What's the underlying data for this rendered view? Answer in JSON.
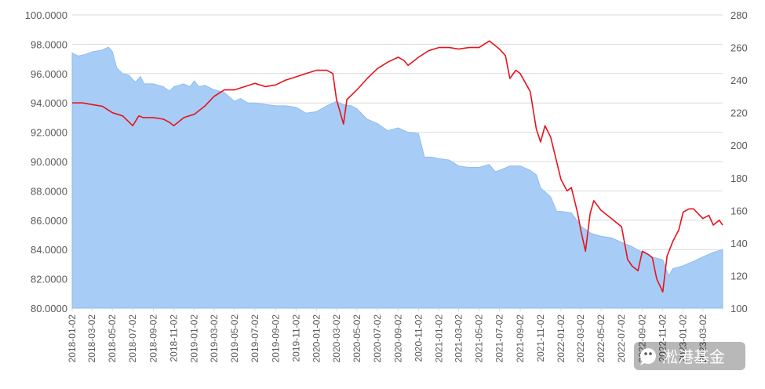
{
  "chart_data": {
    "type": "area+line",
    "title": "",
    "grid": true,
    "legend": "none",
    "colors": {
      "area": "#a7cdf6",
      "area_edge": "#8fbcef",
      "line": "#e8121c",
      "grid": "#d9d9d9",
      "text": "#595959"
    },
    "left_axis": {
      "ylim": [
        80,
        100
      ],
      "ticks": [
        "100.0000",
        "98.0000",
        "96.0000",
        "94.0000",
        "92.0000",
        "90.0000",
        "88.0000",
        "86.0000",
        "84.0000",
        "82.0000",
        "80.0000"
      ],
      "tick_values": [
        100,
        98,
        96,
        94,
        92,
        90,
        88,
        86,
        84,
        82,
        80
      ]
    },
    "right_axis": {
      "ylim": [
        100,
        280
      ],
      "ticks": [
        "280",
        "260",
        "240",
        "220",
        "200",
        "180",
        "160",
        "140",
        "120",
        "100"
      ],
      "tick_values": [
        280,
        260,
        240,
        220,
        200,
        180,
        160,
        140,
        120,
        100
      ]
    },
    "x_axis": {
      "type": "date",
      "range": [
        "2018-01-02",
        "2023-04-30"
      ],
      "tick_labels": [
        "2018-01-02",
        "2018-03-02",
        "2018-05-02",
        "2018-07-02",
        "2018-09-02",
        "2018-11-02",
        "2019-01-02",
        "2019-03-02",
        "2019-05-02",
        "2019-07-02",
        "2019-09-02",
        "2019-11-02",
        "2020-01-02",
        "2020-03-02",
        "2020-05-02",
        "2020-07-02",
        "2020-09-02",
        "2020-11-02",
        "2021-01-02",
        "2021-03-02",
        "2021-05-02",
        "2021-07-02",
        "2021-09-02",
        "2021-11-02",
        "2022-01-02",
        "2022-03-02",
        "2022-05-02",
        "2022-07-02",
        "2022-09-02",
        "2022-11-02",
        "2023-01-02",
        "2023-03-02"
      ]
    },
    "series": [
      {
        "axis": "left",
        "style": "area",
        "points": [
          [
            "2018-01-02",
            97.4
          ],
          [
            "2018-01-20",
            97.2
          ],
          [
            "2018-02-10",
            97.3
          ],
          [
            "2018-03-05",
            97.5
          ],
          [
            "2018-04-01",
            97.6
          ],
          [
            "2018-04-20",
            97.8
          ],
          [
            "2018-05-02",
            97.5
          ],
          [
            "2018-05-15",
            96.4
          ],
          [
            "2018-06-01",
            96.0
          ],
          [
            "2018-06-20",
            95.9
          ],
          [
            "2018-07-10",
            95.4
          ],
          [
            "2018-07-25",
            95.8
          ],
          [
            "2018-08-05",
            95.3
          ],
          [
            "2018-09-01",
            95.3
          ],
          [
            "2018-10-01",
            95.1
          ],
          [
            "2018-10-20",
            94.8
          ],
          [
            "2018-11-02",
            95.1
          ],
          [
            "2018-12-01",
            95.3
          ],
          [
            "2018-12-20",
            95.1
          ],
          [
            "2019-01-02",
            95.5
          ],
          [
            "2019-01-15",
            95.1
          ],
          [
            "2019-02-02",
            95.2
          ],
          [
            "2019-03-02",
            94.9
          ],
          [
            "2019-04-02",
            94.7
          ],
          [
            "2019-05-02",
            94.1
          ],
          [
            "2019-05-20",
            94.3
          ],
          [
            "2019-06-10",
            94.0
          ],
          [
            "2019-07-02",
            94.0
          ],
          [
            "2019-08-02",
            93.9
          ],
          [
            "2019-09-02",
            93.8
          ],
          [
            "2019-10-02",
            93.8
          ],
          [
            "2019-11-02",
            93.7
          ],
          [
            "2019-12-02",
            93.3
          ],
          [
            "2020-01-02",
            93.4
          ],
          [
            "2020-02-02",
            93.8
          ],
          [
            "2020-03-02",
            94.1
          ],
          [
            "2020-03-20",
            93.9
          ],
          [
            "2020-04-15",
            93.8
          ],
          [
            "2020-05-02",
            93.6
          ],
          [
            "2020-06-01",
            92.9
          ],
          [
            "2020-07-02",
            92.6
          ],
          [
            "2020-08-02",
            92.1
          ],
          [
            "2020-09-02",
            92.3
          ],
          [
            "2020-10-01",
            92.0
          ],
          [
            "2020-11-02",
            91.9
          ],
          [
            "2020-11-20",
            90.3
          ],
          [
            "2020-12-10",
            90.3
          ],
          [
            "2021-01-02",
            90.2
          ],
          [
            "2021-02-02",
            90.1
          ],
          [
            "2021-03-02",
            89.7
          ],
          [
            "2021-04-02",
            89.6
          ],
          [
            "2021-05-02",
            89.6
          ],
          [
            "2021-06-01",
            89.8
          ],
          [
            "2021-06-20",
            89.3
          ],
          [
            "2021-07-02",
            89.4
          ],
          [
            "2021-08-02",
            89.7
          ],
          [
            "2021-09-02",
            89.7
          ],
          [
            "2021-10-02",
            89.4
          ],
          [
            "2021-10-20",
            89.1
          ],
          [
            "2021-11-02",
            88.2
          ],
          [
            "2021-12-02",
            87.6
          ],
          [
            "2021-12-20",
            86.6
          ],
          [
            "2022-01-02",
            86.6
          ],
          [
            "2022-02-02",
            86.5
          ],
          [
            "2022-03-02",
            85.6
          ],
          [
            "2022-04-02",
            85.1
          ],
          [
            "2022-05-02",
            84.9
          ],
          [
            "2022-06-02",
            84.8
          ],
          [
            "2022-07-02",
            84.5
          ],
          [
            "2022-08-02",
            84.2
          ],
          [
            "2022-09-02",
            83.8
          ],
          [
            "2022-10-02",
            83.5
          ],
          [
            "2022-11-02",
            83.3
          ],
          [
            "2022-11-20",
            82.2
          ],
          [
            "2022-12-02",
            82.7
          ],
          [
            "2023-01-02",
            82.9
          ],
          [
            "2023-02-02",
            83.2
          ],
          [
            "2023-03-02",
            83.5
          ],
          [
            "2023-04-02",
            83.8
          ],
          [
            "2023-04-30",
            84.0
          ]
        ]
      },
      {
        "axis": "right",
        "style": "line",
        "points": [
          [
            "2018-01-02",
            226
          ],
          [
            "2018-02-02",
            226
          ],
          [
            "2018-03-02",
            225
          ],
          [
            "2018-04-02",
            224
          ],
          [
            "2018-05-02",
            220
          ],
          [
            "2018-06-02",
            218
          ],
          [
            "2018-07-02",
            212
          ],
          [
            "2018-07-20",
            218
          ],
          [
            "2018-08-02",
            217
          ],
          [
            "2018-09-02",
            217
          ],
          [
            "2018-10-02",
            216
          ],
          [
            "2018-10-20",
            214
          ],
          [
            "2018-11-02",
            212
          ],
          [
            "2018-12-02",
            217
          ],
          [
            "2019-01-02",
            219
          ],
          [
            "2019-02-02",
            224
          ],
          [
            "2019-03-02",
            230
          ],
          [
            "2019-04-02",
            234
          ],
          [
            "2019-05-02",
            234
          ],
          [
            "2019-06-02",
            236
          ],
          [
            "2019-07-02",
            238
          ],
          [
            "2019-08-02",
            236
          ],
          [
            "2019-09-02",
            237
          ],
          [
            "2019-10-02",
            240
          ],
          [
            "2019-11-02",
            242
          ],
          [
            "2019-12-02",
            244
          ],
          [
            "2020-01-02",
            246
          ],
          [
            "2020-02-02",
            246
          ],
          [
            "2020-02-20",
            244
          ],
          [
            "2020-03-02",
            228
          ],
          [
            "2020-03-23",
            213
          ],
          [
            "2020-04-02",
            228
          ],
          [
            "2020-05-02",
            234
          ],
          [
            "2020-06-02",
            241
          ],
          [
            "2020-07-02",
            247
          ],
          [
            "2020-08-02",
            251
          ],
          [
            "2020-09-02",
            254
          ],
          [
            "2020-09-20",
            252
          ],
          [
            "2020-10-02",
            249
          ],
          [
            "2020-11-02",
            254
          ],
          [
            "2020-12-02",
            258
          ],
          [
            "2021-01-02",
            260
          ],
          [
            "2021-02-02",
            260
          ],
          [
            "2021-03-02",
            259
          ],
          [
            "2021-04-02",
            260
          ],
          [
            "2021-05-02",
            260
          ],
          [
            "2021-06-02",
            264
          ],
          [
            "2021-07-02",
            259
          ],
          [
            "2021-07-20",
            255
          ],
          [
            "2021-08-02",
            241
          ],
          [
            "2021-08-20",
            246
          ],
          [
            "2021-09-02",
            244
          ],
          [
            "2021-10-02",
            233
          ],
          [
            "2021-10-20",
            210
          ],
          [
            "2021-11-02",
            202
          ],
          [
            "2021-11-15",
            212
          ],
          [
            "2021-12-02",
            205
          ],
          [
            "2021-12-15",
            194
          ],
          [
            "2022-01-02",
            179
          ],
          [
            "2022-01-20",
            172
          ],
          [
            "2022-02-02",
            174
          ],
          [
            "2022-02-20",
            159
          ],
          [
            "2022-03-02",
            148
          ],
          [
            "2022-03-16",
            135
          ],
          [
            "2022-03-30",
            158
          ],
          [
            "2022-04-10",
            166
          ],
          [
            "2022-05-02",
            160
          ],
          [
            "2022-06-02",
            155
          ],
          [
            "2022-07-02",
            150
          ],
          [
            "2022-07-20",
            130
          ],
          [
            "2022-08-02",
            126
          ],
          [
            "2022-08-20",
            123
          ],
          [
            "2022-09-02",
            135
          ],
          [
            "2022-09-20",
            133
          ],
          [
            "2022-10-02",
            131
          ],
          [
            "2022-10-15",
            118
          ],
          [
            "2022-11-02",
            110
          ],
          [
            "2022-11-15",
            132
          ],
          [
            "2022-12-02",
            141
          ],
          [
            "2022-12-20",
            148
          ],
          [
            "2023-01-02",
            159
          ],
          [
            "2023-01-20",
            161
          ],
          [
            "2023-02-02",
            161
          ],
          [
            "2023-03-02",
            155
          ],
          [
            "2023-03-20",
            157
          ],
          [
            "2023-04-02",
            151
          ],
          [
            "2023-04-20",
            154
          ],
          [
            "2023-04-30",
            151
          ]
        ]
      }
    ]
  },
  "watermark": {
    "text": "淞港基金"
  }
}
